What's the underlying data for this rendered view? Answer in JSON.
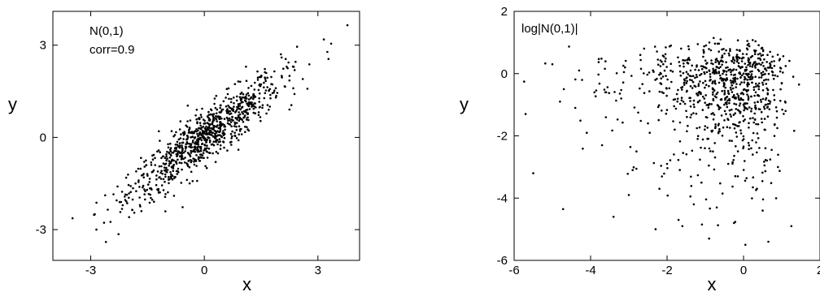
{
  "chart_data": [
    {
      "type": "scatter",
      "annotations": [
        "N(0,1)",
        "corr=0.9"
      ],
      "xlabel": "x",
      "ylabel": "y",
      "xlim": [
        -4,
        4.1
      ],
      "ylim": [
        -4,
        4.1
      ],
      "xticks": [
        -3,
        0,
        3
      ],
      "yticks": [
        -3,
        0,
        3
      ],
      "tick_labels_x": [
        "-3",
        "0",
        "3"
      ],
      "tick_labels_y": [
        "-3",
        "0",
        "3"
      ],
      "grid": false,
      "marker_color": "#000000",
      "points": [
        [
          3.78,
          3.65
        ],
        [
          3.35,
          3.05
        ],
        [
          3.25,
          2.78
        ],
        [
          3.28,
          2.55
        ],
        [
          2.45,
          2.95
        ],
        [
          2.15,
          2.55
        ],
        [
          2.2,
          2.25
        ],
        [
          2.25,
          2.0
        ],
        [
          2.05,
          1.95
        ],
        [
          2.35,
          1.6
        ],
        [
          2.3,
          1.05
        ],
        [
          1.9,
          1.35
        ],
        [
          1.6,
          1.95
        ],
        [
          1.45,
          1.7
        ],
        [
          1.3,
          1.3
        ],
        [
          1.15,
          1.05
        ],
        [
          1.0,
          1.3
        ],
        [
          0.9,
          0.95
        ],
        [
          0.75,
          0.55
        ],
        [
          0.6,
          0.8
        ],
        [
          0.55,
          0.35
        ],
        [
          0.4,
          0.6
        ],
        [
          0.3,
          0.2
        ],
        [
          0.15,
          -0.1
        ],
        [
          0.05,
          0.35
        ],
        [
          -0.05,
          -0.2
        ],
        [
          -0.15,
          0.05
        ],
        [
          -0.25,
          -0.45
        ],
        [
          -0.4,
          -0.3
        ],
        [
          -0.55,
          -0.7
        ],
        [
          -0.7,
          -0.45
        ],
        [
          -0.85,
          -0.95
        ],
        [
          -1.0,
          -0.75
        ],
        [
          -1.15,
          -1.15
        ],
        [
          -1.3,
          -0.9
        ],
        [
          -1.45,
          -1.45
        ],
        [
          -1.6,
          -1.3
        ],
        [
          -1.8,
          -1.75
        ],
        [
          -2.0,
          -1.55
        ],
        [
          -2.2,
          -2.1
        ],
        [
          -2.4,
          -1.85
        ],
        [
          -2.55,
          -2.35
        ],
        [
          -2.9,
          -2.5
        ],
        [
          -2.85,
          -3.0
        ],
        [
          -2.6,
          -3.4
        ],
        [
          -1.85,
          -2.45
        ],
        [
          -1.7,
          -2.2
        ],
        [
          -0.2,
          0.9
        ],
        [
          0.3,
          -0.8
        ],
        [
          1.7,
          0.9
        ],
        [
          -1.2,
          0.2
        ],
        [
          0.9,
          -0.4
        ],
        [
          2.6,
          1.9
        ],
        [
          1.1,
          2.3
        ],
        [
          -0.8,
          -1.9
        ]
      ],
      "n_points_rendered": 900,
      "correlation": 0.9
    },
    {
      "type": "scatter",
      "annotations": [
        "log|N(0,1)|"
      ],
      "xlabel": "x",
      "ylabel": "y",
      "xlim": [
        -6,
        2
      ],
      "ylim": [
        -6,
        2
      ],
      "xticks": [
        -6,
        -4,
        -2,
        0,
        2
      ],
      "yticks": [
        -6,
        -4,
        -2,
        0,
        2
      ],
      "tick_labels_x": [
        "-6",
        "-4",
        "-2",
        "0",
        "2"
      ],
      "tick_labels_y": [
        "-6",
        "-4",
        "-2",
        "0",
        "2"
      ],
      "grid": false,
      "marker_color": "#000000",
      "points": [
        [
          -5.7,
          -1.3
        ],
        [
          -5.5,
          -3.2
        ],
        [
          -5.0,
          0.3
        ],
        [
          -4.8,
          -0.9
        ],
        [
          -4.7,
          -0.5
        ],
        [
          -4.4,
          -1.1
        ],
        [
          -4.3,
          0.1
        ],
        [
          -4.1,
          -1.9
        ],
        [
          -3.9,
          -0.6
        ],
        [
          -3.7,
          -2.3
        ],
        [
          -3.6,
          -1.4
        ],
        [
          -3.4,
          -4.6
        ],
        [
          -3.2,
          -0.8
        ],
        [
          -3.0,
          -3.9
        ],
        [
          -2.9,
          -3.1
        ],
        [
          -2.8,
          -2.5
        ],
        [
          -2.7,
          0.6
        ],
        [
          -2.5,
          -1.6
        ],
        [
          -2.3,
          -5.0
        ],
        [
          -2.2,
          -3.7
        ],
        [
          -2.0,
          -2.9
        ],
        [
          -1.9,
          0.9
        ],
        [
          -1.7,
          -4.7
        ],
        [
          -1.6,
          -4.9
        ],
        [
          -1.5,
          -1.2
        ],
        [
          -1.3,
          -4.2
        ],
        [
          -1.2,
          -2.1
        ],
        [
          -1.1,
          -3.5
        ],
        [
          -1.0,
          0.2
        ],
        [
          -0.9,
          -5.3
        ],
        [
          -0.8,
          -0.6
        ],
        [
          -0.7,
          -4.3
        ],
        [
          -0.6,
          0.4
        ],
        [
          -0.5,
          -1.5
        ],
        [
          -0.4,
          -2.9
        ],
        [
          -0.3,
          0.1
        ],
        [
          -0.25,
          -4.8
        ],
        [
          -0.2,
          -0.8
        ],
        [
          -0.15,
          -3.3
        ],
        [
          -0.1,
          0.5
        ],
        [
          0.0,
          -1.0
        ],
        [
          0.05,
          -5.5
        ],
        [
          0.1,
          -0.2
        ],
        [
          0.2,
          -2.4
        ],
        [
          0.3,
          0.7
        ],
        [
          0.4,
          -0.5
        ],
        [
          0.5,
          -4.4
        ],
        [
          0.55,
          -1.8
        ],
        [
          0.6,
          0.1
        ],
        [
          0.65,
          -5.4
        ],
        [
          0.7,
          -0.9
        ],
        [
          0.8,
          0.4
        ],
        [
          0.9,
          -3.0
        ],
        [
          1.0,
          -0.3
        ],
        [
          1.1,
          -1.2
        ],
        [
          1.3,
          -0.1
        ],
        [
          1.45,
          -0.35
        ],
        [
          1.25,
          -4.9
        ],
        [
          -0.6,
          1.1
        ],
        [
          0.1,
          1.05
        ],
        [
          -2.1,
          0.3
        ],
        [
          -1.4,
          -0.2
        ],
        [
          -3.1,
          0.2
        ],
        [
          -1.8,
          -1.8
        ],
        [
          -0.8,
          -2.5
        ],
        [
          0.35,
          -3.7
        ]
      ],
      "n_points_rendered": 900
    }
  ]
}
